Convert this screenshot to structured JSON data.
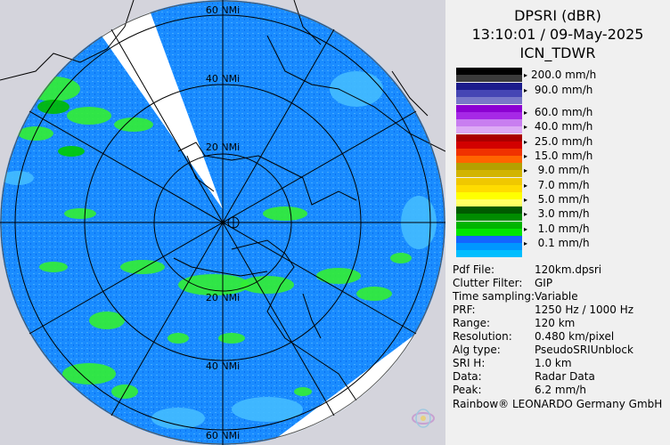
{
  "product": {
    "title": "DPSRI (dBR)",
    "datetime": "13:10:01 / 09-May-2025",
    "site": "ICN_TDWR"
  },
  "legend": [
    {
      "label": "200.0 mm/h",
      "colors": [
        "#000000",
        "#3a3a3a"
      ]
    },
    {
      "label": " 90.0 mm/h",
      "colors": [
        "#1c1c8c",
        "#4646b4",
        "#7878c8"
      ]
    },
    {
      "label": " 60.0 mm/h",
      "colors": [
        "#8c00d2",
        "#a628e6"
      ]
    },
    {
      "label": " 40.0 mm/h",
      "colors": [
        "#c87ef0",
        "#dcaaf5"
      ]
    },
    {
      "label": " 25.0 mm/h",
      "colors": [
        "#aa0000",
        "#d20000"
      ]
    },
    {
      "label": " 15.0 mm/h",
      "colors": [
        "#f03200",
        "#ff6400"
      ]
    },
    {
      "label": "  9.0 mm/h",
      "colors": [
        "#b4a000",
        "#d2b400"
      ]
    },
    {
      "label": "  7.0 mm/h",
      "colors": [
        "#f0c800",
        "#ffdc00"
      ]
    },
    {
      "label": "  5.0 mm/h",
      "colors": [
        "#ffff00",
        "#ffff64"
      ]
    },
    {
      "label": "  3.0 mm/h",
      "colors": [
        "#005a00",
        "#008c00"
      ]
    },
    {
      "label": "  1.0 mm/h",
      "colors": [
        "#00b400",
        "#00e600"
      ]
    },
    {
      "label": "  0.1 mm/h",
      "colors": [
        "#1464ff",
        "#0096ff",
        "#00beff"
      ]
    }
  ],
  "info": [
    {
      "key": "Pdf File:",
      "value": "120km.dpsri"
    },
    {
      "key": "Clutter Filter:",
      "value": "GIP"
    },
    {
      "key": "Time sampling:",
      "value": "Variable"
    },
    {
      "key": "PRF:",
      "value": "1250 Hz / 1000 Hz"
    },
    {
      "key": "Range:",
      "value": "120 km"
    },
    {
      "key": "Resolution:",
      "value": "0.480 km/pixel"
    },
    {
      "key": "Alg type:",
      "value": "PseudoSRIUnblock"
    },
    {
      "key": "SRI H:",
      "value": "1.0 km"
    },
    {
      "key": "Data:",
      "value": "Radar Data"
    },
    {
      "key": "Peak:",
      "value": "6.2 mm/h"
    }
  ],
  "footer": "Rainbow® LEONARDO Germany GmbH",
  "range_rings": {
    "north": [
      "20 NMi",
      "40 NMi",
      "60 NMi"
    ],
    "south": [
      "20 NMi",
      "40 NMi",
      "60 NMi"
    ]
  },
  "colors": {
    "light_rain": "#1a8cff",
    "moderate_rain": "#33ee33",
    "heavy_rain": "#00aa00",
    "light_drizzle": "#44bbff",
    "outside_coverage": "#d4d4dc",
    "blocked_beam": "#ffffff",
    "panel_bg": "#f0f0f0"
  }
}
